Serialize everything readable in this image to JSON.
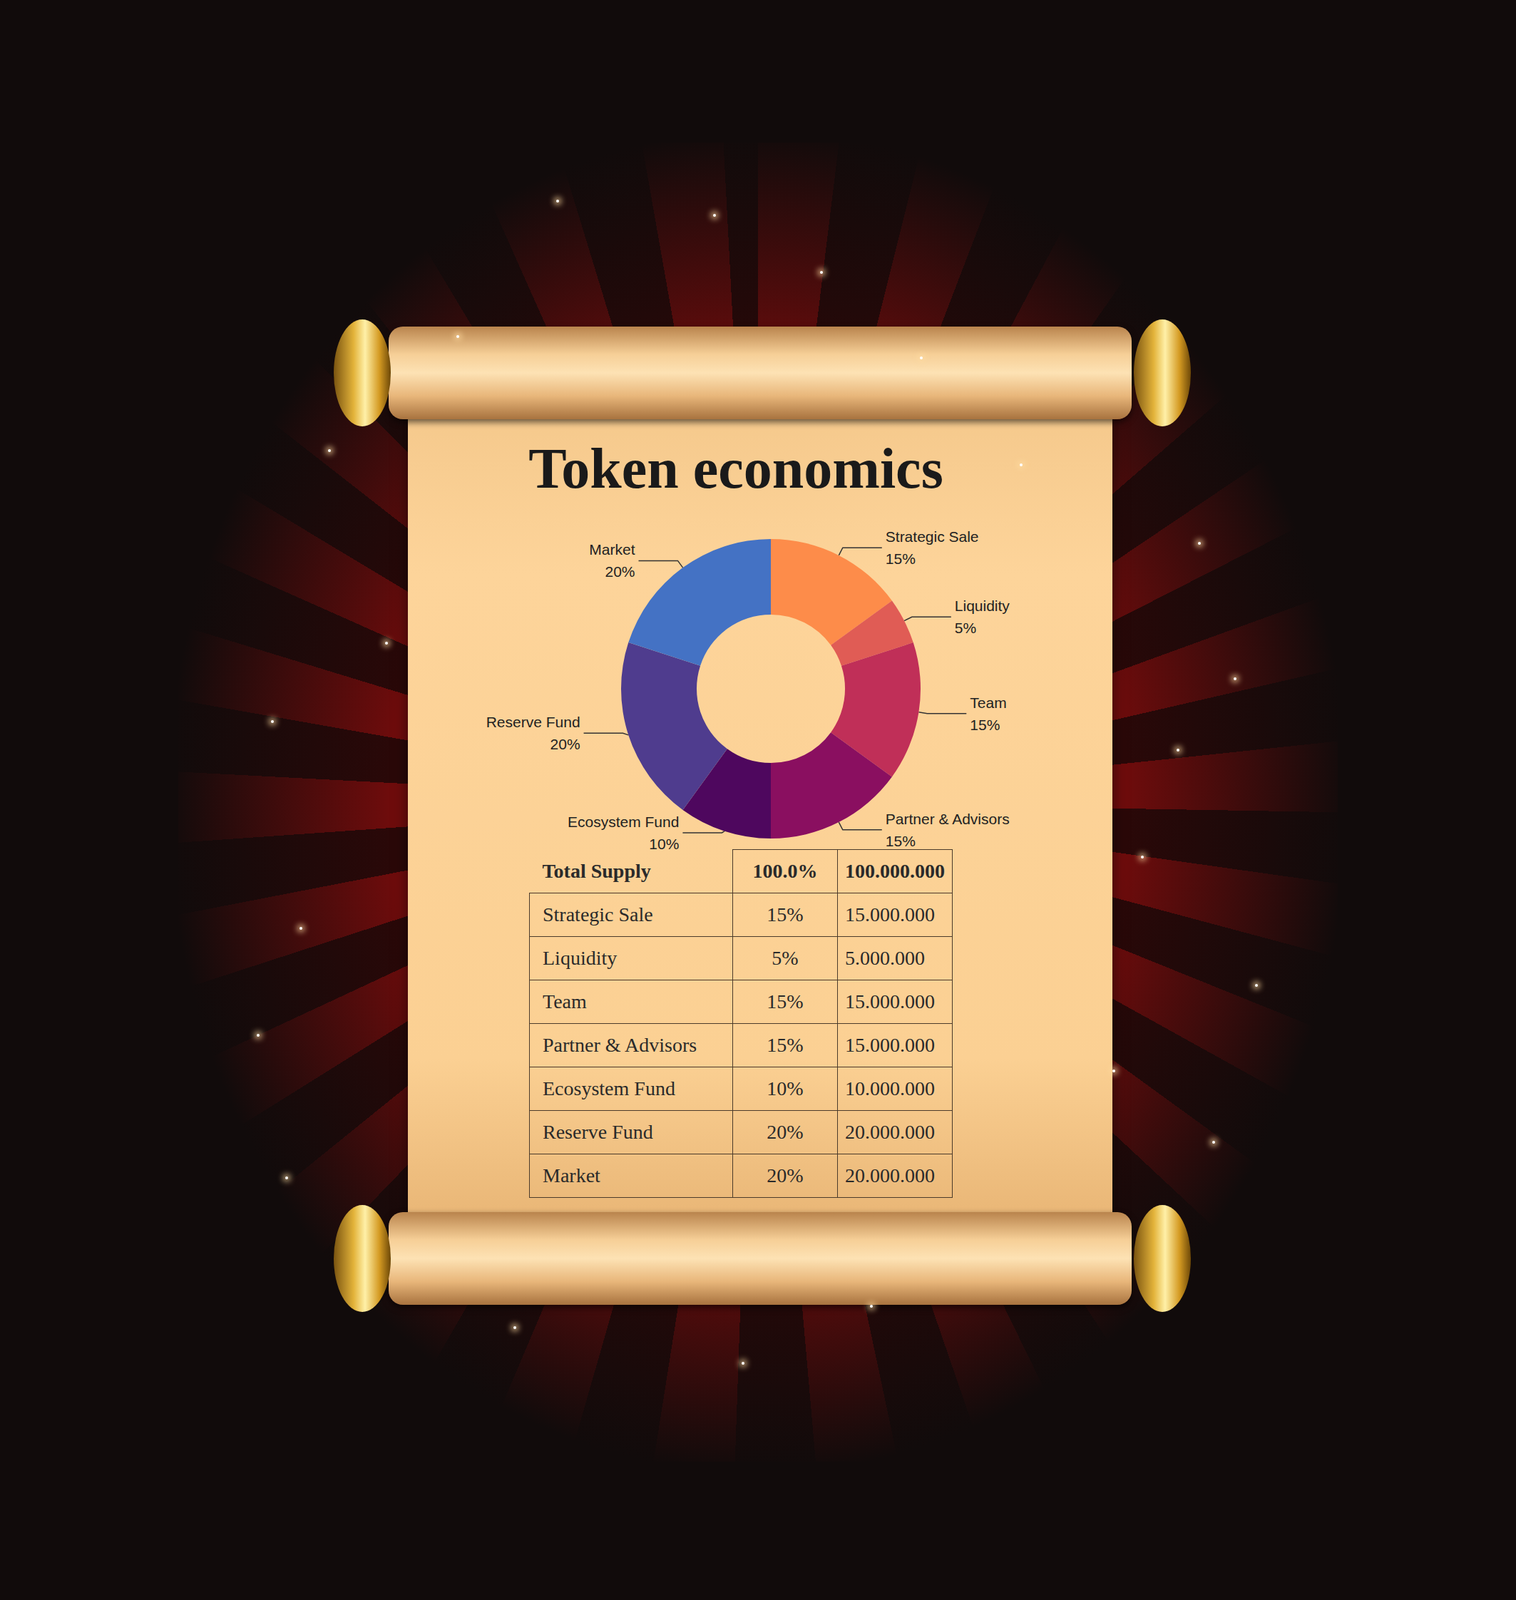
{
  "chart_data": {
    "type": "pie",
    "title": "Token economics",
    "categories": [
      "Strategic Sale",
      "Liquidity",
      "Team",
      "Partner & Advisors",
      "Ecosystem Fund",
      "Reserve Fund",
      "Market"
    ],
    "values": [
      15,
      5,
      15,
      15,
      10,
      20,
      20
    ],
    "value_labels": [
      "15%",
      "5%",
      "15%",
      "15%",
      "10%",
      "20%",
      "20%"
    ],
    "colors": [
      "#fd8c4a",
      "#e05c55",
      "#c02f58",
      "#8a0f60",
      "#4e075e",
      "#4f3c8e",
      "#4472c4"
    ],
    "data_labels": true
  },
  "table": {
    "header": [
      "Total Supply",
      "100.0%",
      "100.000.000"
    ],
    "rows": [
      [
        "Strategic Sale",
        "15%",
        "15.000.000"
      ],
      [
        "Liquidity",
        "5%",
        "5.000.000"
      ],
      [
        "Team",
        "15%",
        "15.000.000"
      ],
      [
        "Partner & Advisors",
        "15%",
        "15.000.000"
      ],
      [
        "Ecosystem Fund",
        "10%",
        "10.000.000"
      ],
      [
        "Reserve Fund",
        "20%",
        "20.000.000"
      ],
      [
        "Market",
        "20%",
        "20.000.000"
      ]
    ]
  }
}
